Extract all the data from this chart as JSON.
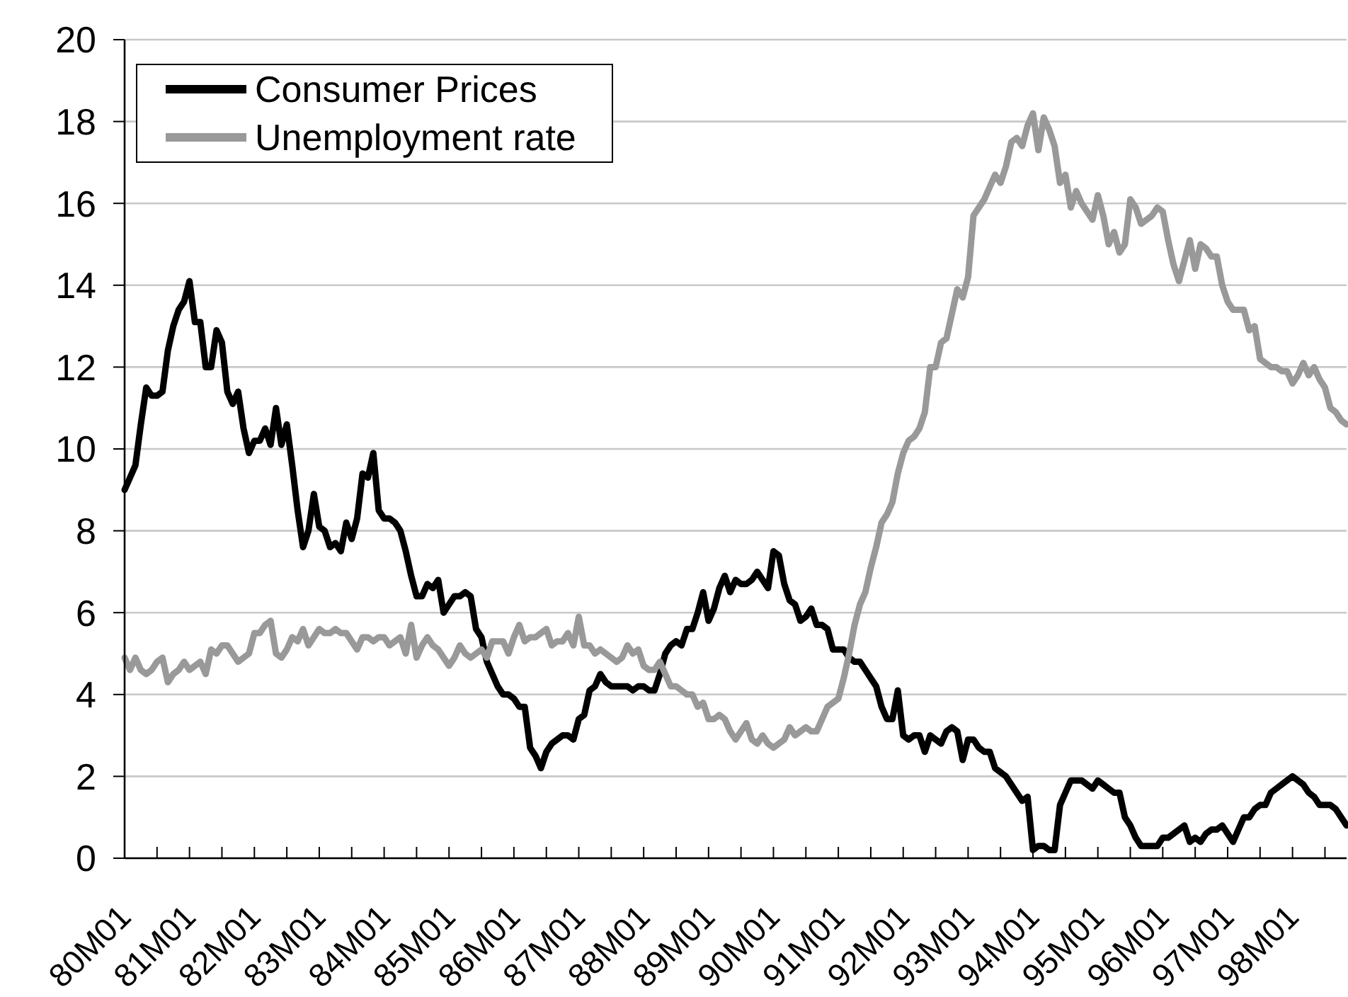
{
  "chart_data": {
    "type": "line",
    "categories": [
      "80M01",
      null,
      null,
      null,
      null,
      null,
      null,
      null,
      null,
      null,
      null,
      null,
      "81M01",
      null,
      null,
      null,
      null,
      null,
      null,
      null,
      null,
      null,
      null,
      null,
      "82M01",
      null,
      null,
      null,
      null,
      null,
      null,
      null,
      null,
      null,
      null,
      null,
      "83M01",
      null,
      null,
      null,
      null,
      null,
      null,
      null,
      null,
      null,
      null,
      null,
      "84M01",
      null,
      null,
      null,
      null,
      null,
      null,
      null,
      null,
      null,
      null,
      null,
      "85M01",
      null,
      null,
      null,
      null,
      null,
      null,
      null,
      null,
      null,
      null,
      null,
      "86M01",
      null,
      null,
      null,
      null,
      null,
      null,
      null,
      null,
      null,
      null,
      null,
      "87M01",
      null,
      null,
      null,
      null,
      null,
      null,
      null,
      null,
      null,
      null,
      null,
      "88M01",
      null,
      null,
      null,
      null,
      null,
      null,
      null,
      null,
      null,
      null,
      null,
      "89M01",
      null,
      null,
      null,
      null,
      null,
      null,
      null,
      null,
      null,
      null,
      null,
      "90M01",
      null,
      null,
      null,
      null,
      null,
      null,
      null,
      null,
      null,
      null,
      null,
      "91M01",
      null,
      null,
      null,
      null,
      null,
      null,
      null,
      null,
      null,
      null,
      null,
      "92M01",
      null,
      null,
      null,
      null,
      null,
      null,
      null,
      null,
      null,
      null,
      null,
      "93M01",
      null,
      null,
      null,
      null,
      null,
      null,
      null,
      null,
      null,
      null,
      null,
      "94M01",
      null,
      null,
      null,
      null,
      null,
      null,
      null,
      null,
      null,
      null,
      null,
      "95M01",
      null,
      null,
      null,
      null,
      null,
      null,
      null,
      null,
      null,
      null,
      null,
      "96M01",
      null,
      null,
      null,
      null,
      null,
      null,
      null,
      null,
      null,
      null,
      null,
      "97M01",
      null,
      null,
      null,
      null,
      null,
      null,
      null,
      null,
      null,
      null,
      null,
      "98M01",
      null,
      null,
      null,
      null,
      null,
      null,
      null,
      null,
      null,
      null
    ],
    "series": [
      {
        "name": "Consumer Prices",
        "color": "#000000",
        "values": [
          9.0,
          9.3,
          9.6,
          10.6,
          11.5,
          11.3,
          11.3,
          11.4,
          12.4,
          13.0,
          13.4,
          13.6,
          14.1,
          13.1,
          13.1,
          12.0,
          12.0,
          12.9,
          12.6,
          11.4,
          11.1,
          11.4,
          10.5,
          9.9,
          10.2,
          10.2,
          10.5,
          10.1,
          11.0,
          10.1,
          10.6,
          9.6,
          8.5,
          7.6,
          8.0,
          8.9,
          8.1,
          8.0,
          7.6,
          7.7,
          7.5,
          8.2,
          7.8,
          8.3,
          9.4,
          9.3,
          9.9,
          8.5,
          8.3,
          8.3,
          8.2,
          8.0,
          7.5,
          6.9,
          6.4,
          6.4,
          6.7,
          6.6,
          6.8,
          6.0,
          6.2,
          6.4,
          6.4,
          6.5,
          6.4,
          5.6,
          5.4,
          4.8,
          4.5,
          4.2,
          4.0,
          4.0,
          3.9,
          3.7,
          3.7,
          2.7,
          2.5,
          2.2,
          2.6,
          2.8,
          2.9,
          3.0,
          3.0,
          2.9,
          3.4,
          3.5,
          4.1,
          4.2,
          4.5,
          4.3,
          4.2,
          4.2,
          4.2,
          4.2,
          4.1,
          4.2,
          4.2,
          4.1,
          4.1,
          4.5,
          5.0,
          5.2,
          5.3,
          5.2,
          5.6,
          5.6,
          6.0,
          6.5,
          5.8,
          6.1,
          6.6,
          6.9,
          6.5,
          6.8,
          6.7,
          6.7,
          6.8,
          7.0,
          6.8,
          6.6,
          7.5,
          7.4,
          6.7,
          6.3,
          6.2,
          5.8,
          5.9,
          6.1,
          5.7,
          5.7,
          5.6,
          5.1,
          5.1,
          5.1,
          4.9,
          4.8,
          4.8,
          4.6,
          4.4,
          4.2,
          3.7,
          3.4,
          3.4,
          4.1,
          3.0,
          2.9,
          3.0,
          3.0,
          2.6,
          3.0,
          2.9,
          2.8,
          3.1,
          3.2,
          3.1,
          2.4,
          2.9,
          2.9,
          2.7,
          2.6,
          2.6,
          2.2,
          2.1,
          2.0,
          1.8,
          1.6,
          1.4,
          1.5,
          0.2,
          0.3,
          0.3,
          0.2,
          0.2,
          1.3,
          1.6,
          1.9,
          1.9,
          1.9,
          1.8,
          1.7,
          1.9,
          1.8,
          1.7,
          1.6,
          1.6,
          1.0,
          0.8,
          0.5,
          0.3,
          0.3,
          0.3,
          0.3,
          0.5,
          0.5,
          0.6,
          0.7,
          0.8,
          0.4,
          0.5,
          0.4,
          0.6,
          0.7,
          0.7,
          0.8,
          0.6,
          0.4,
          0.7,
          1.0,
          1.0,
          1.2,
          1.3,
          1.3,
          1.6,
          1.7,
          1.8,
          1.9,
          2.0,
          1.9,
          1.8,
          1.6,
          1.5,
          1.3,
          1.3,
          1.3,
          1.2,
          1.0,
          0.8
        ]
      },
      {
        "name": "Unemployment rate",
        "color": "#999999",
        "values": [
          4.9,
          4.6,
          4.9,
          4.6,
          4.5,
          4.6,
          4.8,
          4.9,
          4.3,
          4.5,
          4.6,
          4.8,
          4.6,
          4.7,
          4.8,
          4.5,
          5.1,
          5.0,
          5.2,
          5.2,
          5.0,
          4.8,
          4.9,
          5.0,
          5.5,
          5.5,
          5.7,
          5.8,
          5.0,
          4.9,
          5.1,
          5.4,
          5.3,
          5.6,
          5.2,
          5.4,
          5.6,
          5.5,
          5.5,
          5.6,
          5.5,
          5.5,
          5.3,
          5.1,
          5.4,
          5.4,
          5.3,
          5.4,
          5.4,
          5.2,
          5.3,
          5.4,
          5.0,
          5.7,
          4.9,
          5.2,
          5.4,
          5.2,
          5.1,
          4.9,
          4.7,
          4.9,
          5.2,
          5.0,
          4.9,
          5.0,
          5.1,
          4.9,
          5.3,
          5.3,
          5.3,
          5.0,
          5.4,
          5.7,
          5.3,
          5.4,
          5.4,
          5.5,
          5.6,
          5.2,
          5.3,
          5.3,
          5.5,
          5.2,
          5.9,
          5.2,
          5.2,
          5.0,
          5.1,
          5.0,
          4.9,
          4.8,
          4.9,
          5.2,
          5.0,
          5.1,
          4.7,
          4.6,
          4.6,
          4.8,
          4.5,
          4.2,
          4.2,
          4.1,
          4.0,
          4.0,
          3.7,
          3.8,
          3.4,
          3.4,
          3.5,
          3.4,
          3.1,
          2.9,
          3.1,
          3.3,
          2.9,
          2.8,
          3.0,
          2.8,
          2.7,
          2.8,
          2.9,
          3.2,
          3.0,
          3.1,
          3.2,
          3.1,
          3.1,
          3.4,
          3.7,
          3.8,
          3.9,
          4.4,
          5.0,
          5.7,
          6.2,
          6.5,
          7.1,
          7.6,
          8.2,
          8.4,
          8.7,
          9.4,
          9.9,
          10.2,
          10.3,
          10.5,
          10.9,
          12.0,
          12.0,
          12.6,
          12.7,
          13.3,
          13.9,
          13.7,
          14.2,
          15.7,
          15.9,
          16.1,
          16.4,
          16.7,
          16.5,
          16.9,
          17.5,
          17.6,
          17.4,
          17.9,
          18.2,
          17.3,
          18.1,
          17.8,
          17.4,
          16.5,
          16.7,
          15.9,
          16.3,
          16.0,
          15.8,
          15.6,
          16.2,
          15.7,
          15.0,
          15.3,
          14.8,
          15.0,
          16.1,
          15.9,
          15.5,
          15.6,
          15.7,
          15.9,
          15.8,
          15.1,
          14.5,
          14.1,
          14.6,
          15.1,
          14.4,
          15.0,
          14.9,
          14.7,
          14.7,
          14.0,
          13.6,
          13.4,
          13.4,
          13.4,
          12.9,
          13.0,
          12.2,
          12.1,
          12.0,
          12.0,
          11.9,
          11.9,
          11.6,
          11.8,
          12.1,
          11.8,
          12.0,
          11.7,
          11.5,
          11.0,
          10.9,
          10.7,
          10.6
        ]
      }
    ],
    "ylim": [
      0,
      20
    ],
    "yticks": [
      0,
      2,
      4,
      6,
      8,
      10,
      12,
      14,
      16,
      18,
      20
    ],
    "grid": "y",
    "legend": "top left"
  }
}
